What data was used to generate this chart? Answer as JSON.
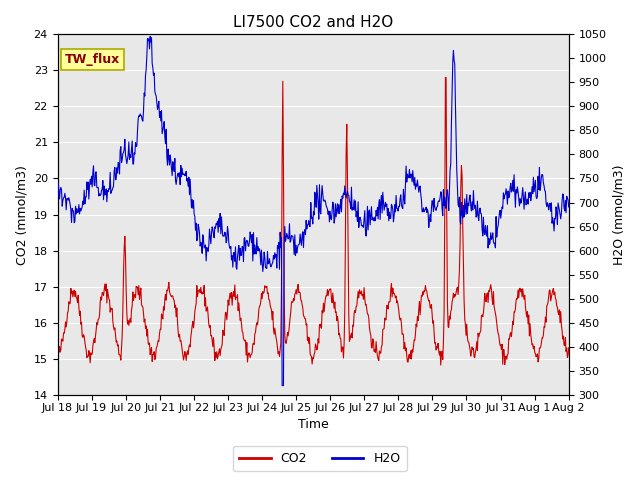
{
  "title": "LI7500 CO2 and H2O",
  "xlabel": "Time",
  "ylabel_left": "CO2 (mmol/m3)",
  "ylabel_right": "H2O (mmol/m3)",
  "ylim_left": [
    14.0,
    24.0
  ],
  "ylim_right": [
    300,
    1050
  ],
  "yticks_left": [
    14.0,
    15.0,
    16.0,
    17.0,
    18.0,
    19.0,
    20.0,
    21.0,
    22.0,
    23.0,
    24.0
  ],
  "yticks_right": [
    300,
    350,
    400,
    450,
    500,
    550,
    600,
    650,
    700,
    750,
    800,
    850,
    900,
    950,
    1000,
    1050
  ],
  "xtick_labels": [
    "Jul 18",
    "Jul 19",
    "Jul 20",
    "Jul 21",
    "Jul 22",
    "Jul 23",
    "Jul 24",
    "Jul 25",
    "Jul 26",
    "Jul 27",
    "Jul 28",
    "Jul 29",
    "Jul 30",
    "Jul 31",
    "Aug 1",
    "Aug 2"
  ],
  "color_co2": "#cc0000",
  "color_h2o": "#0000cc",
  "annotation_text": "TW_flux",
  "annotation_color": "#8b0000",
  "annotation_bg": "#ffff99",
  "plot_bg_color": "#e8e8e8",
  "fig_bg_color": "#ffffff",
  "grid_color": "#ffffff",
  "title_fontsize": 11,
  "label_fontsize": 9,
  "tick_fontsize": 8,
  "legend_fontsize": 9,
  "n_days": 16,
  "n_points": 768
}
